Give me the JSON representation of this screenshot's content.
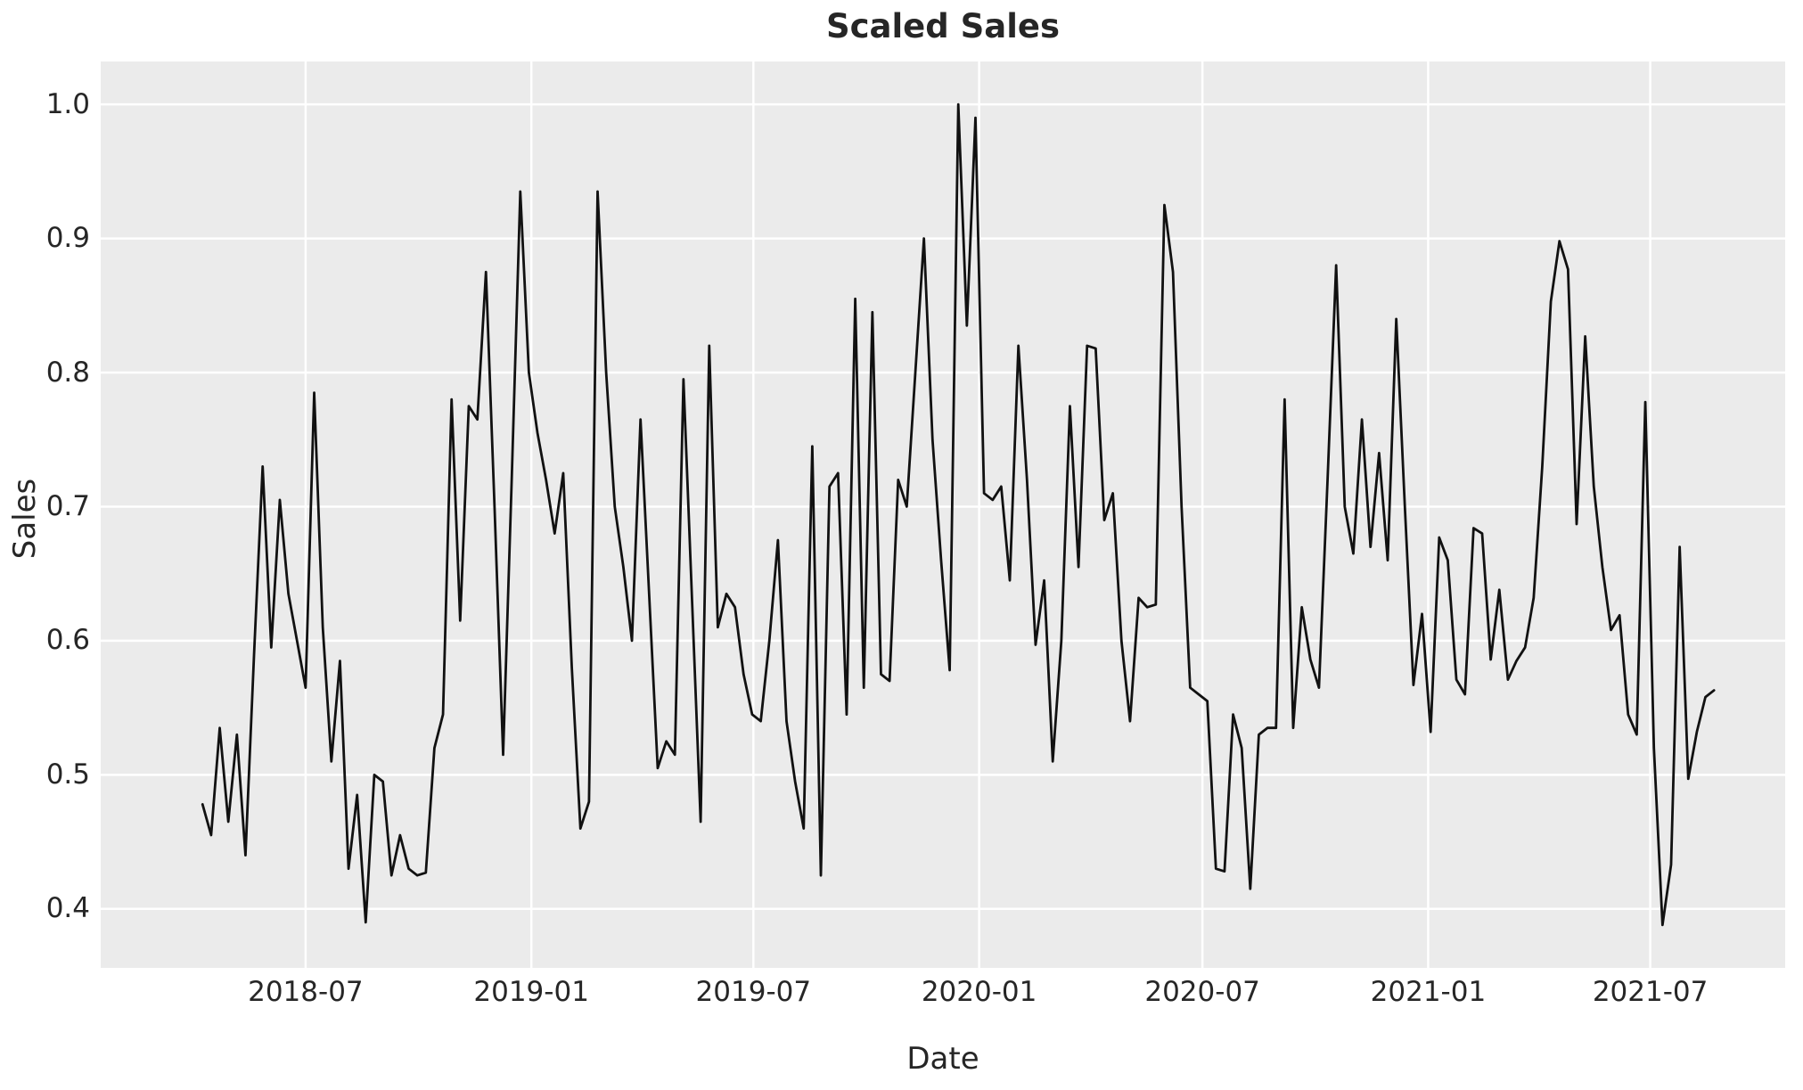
{
  "chart_data": {
    "type": "line",
    "title": "Scaled Sales",
    "xlabel": "Date",
    "ylabel": "Sales",
    "grid": true,
    "legend": "none",
    "line_color": "#111111",
    "plot_bg_color": "#ebebeb",
    "grid_color": "#ffffff",
    "text_color": "#262626",
    "ylim": [
      0.356,
      1.032
    ],
    "xlim_dates": [
      "2018-01-15",
      "2021-10-19"
    ],
    "yticks": [
      {
        "value": 0.4,
        "label": "0.4"
      },
      {
        "value": 0.5,
        "label": "0.5"
      },
      {
        "value": 0.6,
        "label": "0.6"
      },
      {
        "value": 0.7,
        "label": "0.7"
      },
      {
        "value": 0.8,
        "label": "0.8"
      },
      {
        "value": 0.9,
        "label": "0.9"
      },
      {
        "value": 1.0,
        "label": "1.0"
      }
    ],
    "xticks": [
      {
        "date": "2018-07-01",
        "label": "2018-07"
      },
      {
        "date": "2019-01-01",
        "label": "2019-01"
      },
      {
        "date": "2019-07-01",
        "label": "2019-07"
      },
      {
        "date": "2020-01-01",
        "label": "2020-01"
      },
      {
        "date": "2020-07-01",
        "label": "2020-07"
      },
      {
        "date": "2021-01-01",
        "label": "2021-01"
      },
      {
        "date": "2021-07-01",
        "label": "2021-07"
      }
    ],
    "series_name": "Sales (scaled)",
    "start_date": "2018-04-08",
    "freq_days": 7,
    "values": [
      0.478,
      0.455,
      0.535,
      0.465,
      0.53,
      0.44,
      0.59,
      0.73,
      0.595,
      0.705,
      0.635,
      0.6,
      0.565,
      0.785,
      0.61,
      0.51,
      0.585,
      0.43,
      0.485,
      0.39,
      0.5,
      0.495,
      0.425,
      0.455,
      0.43,
      0.425,
      0.427,
      0.52,
      0.545,
      0.78,
      0.615,
      0.775,
      0.765,
      0.875,
      0.7,
      0.515,
      0.72,
      0.935,
      0.8,
      0.755,
      0.72,
      0.68,
      0.725,
      0.58,
      0.46,
      0.48,
      0.935,
      0.8,
      0.7,
      0.655,
      0.6,
      0.765,
      0.635,
      0.505,
      0.525,
      0.515,
      0.795,
      0.63,
      0.465,
      0.82,
      0.61,
      0.635,
      0.625,
      0.575,
      0.545,
      0.54,
      0.6,
      0.675,
      0.54,
      0.495,
      0.46,
      0.745,
      0.425,
      0.715,
      0.725,
      0.545,
      0.855,
      0.565,
      0.845,
      0.575,
      0.57,
      0.72,
      0.7,
      0.8,
      0.9,
      0.75,
      0.66,
      0.578,
      1.0,
      0.835,
      0.99,
      0.71,
      0.705,
      0.715,
      0.645,
      0.82,
      0.72,
      0.597,
      0.645,
      0.51,
      0.6,
      0.775,
      0.655,
      0.82,
      0.818,
      0.69,
      0.71,
      0.6,
      0.54,
      0.632,
      0.625,
      0.627,
      0.925,
      0.875,
      0.7,
      0.565,
      0.56,
      0.555,
      0.43,
      0.428,
      0.545,
      0.52,
      0.415,
      0.53,
      0.535,
      0.535,
      0.78,
      0.535,
      0.625,
      0.586,
      0.565,
      0.72,
      0.88,
      0.7,
      0.665,
      0.765,
      0.67,
      0.74,
      0.66,
      0.84,
      0.7,
      0.567,
      0.62,
      0.532,
      0.677,
      0.66,
      0.571,
      0.56,
      0.684,
      0.68,
      0.586,
      0.638,
      0.571,
      0.585,
      0.595,
      0.632,
      0.73,
      0.853,
      0.898,
      0.877,
      0.687,
      0.827,
      0.715,
      0.655,
      0.608,
      0.619,
      0.545,
      0.53,
      0.778,
      0.52,
      0.388,
      0.433,
      0.67,
      0.497,
      0.532,
      0.558,
      0.563
    ]
  }
}
